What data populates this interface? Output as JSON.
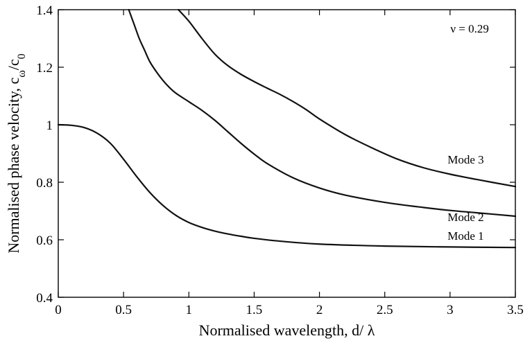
{
  "chart_data": {
    "type": "line",
    "xlabel": "Normalised wavelength, d/ λ",
    "ylabel": "Normalised phase velocity, c_ω/c_0",
    "xlim": [
      0,
      3.5
    ],
    "ylim": [
      0.4,
      1.4
    ],
    "xticks": [
      0,
      0.5,
      1,
      1.5,
      2,
      2.5,
      3,
      3.5
    ],
    "xtick_labels": [
      "0",
      "0.5",
      "1",
      "1.5",
      "2",
      "2.5",
      "3",
      "3.5"
    ],
    "yticks": [
      0.4,
      0.6,
      0.8,
      1.0,
      1.2,
      1.4
    ],
    "ytick_labels": [
      "0.4",
      "0.6",
      "0.8",
      "1",
      "1.2",
      "1.4"
    ],
    "grid": false,
    "annotations": [
      {
        "text": "ν = 0.29",
        "x": 3.15,
        "y": 1.32
      },
      {
        "text": "Mode 3",
        "x": 3.12,
        "y": 0.865
      },
      {
        "text": "Mode 2",
        "x": 3.12,
        "y": 0.665
      },
      {
        "text": "Mode 1",
        "x": 3.12,
        "y": 0.6
      }
    ],
    "series": [
      {
        "name": "Mode 1",
        "x": [
          0,
          0.1,
          0.2,
          0.3,
          0.4,
          0.5,
          0.6,
          0.7,
          0.8,
          0.9,
          1.0,
          1.1,
          1.2,
          1.3,
          1.4,
          1.5,
          1.7,
          2.0,
          2.5,
          3.0,
          3.5
        ],
        "y": [
          1.0,
          0.998,
          0.99,
          0.97,
          0.935,
          0.88,
          0.82,
          0.765,
          0.72,
          0.685,
          0.66,
          0.643,
          0.63,
          0.62,
          0.612,
          0.605,
          0.595,
          0.585,
          0.578,
          0.575,
          0.573
        ]
      },
      {
        "name": "Mode 2",
        "x": [
          0.54,
          0.58,
          0.62,
          0.66,
          0.7,
          0.75,
          0.8,
          0.85,
          0.9,
          1.0,
          1.1,
          1.2,
          1.3,
          1.4,
          1.5,
          1.6,
          1.8,
          2.0,
          2.2,
          2.5,
          2.8,
          3.0,
          3.2,
          3.5
        ],
        "y": [
          1.4,
          1.35,
          1.3,
          1.26,
          1.22,
          1.185,
          1.155,
          1.13,
          1.11,
          1.08,
          1.05,
          1.015,
          0.975,
          0.935,
          0.898,
          0.865,
          0.815,
          0.78,
          0.755,
          0.73,
          0.712,
          0.702,
          0.694,
          0.682
        ]
      },
      {
        "name": "Mode 3",
        "x": [
          0.92,
          1.0,
          1.1,
          1.2,
          1.3,
          1.4,
          1.5,
          1.6,
          1.7,
          1.8,
          1.9,
          2.0,
          2.2,
          2.4,
          2.6,
          2.8,
          3.0,
          3.2,
          3.5
        ],
        "y": [
          1.4,
          1.36,
          1.3,
          1.245,
          1.205,
          1.175,
          1.15,
          1.127,
          1.105,
          1.08,
          1.052,
          1.02,
          0.965,
          0.92,
          0.88,
          0.85,
          0.828,
          0.81,
          0.785
        ]
      }
    ]
  }
}
